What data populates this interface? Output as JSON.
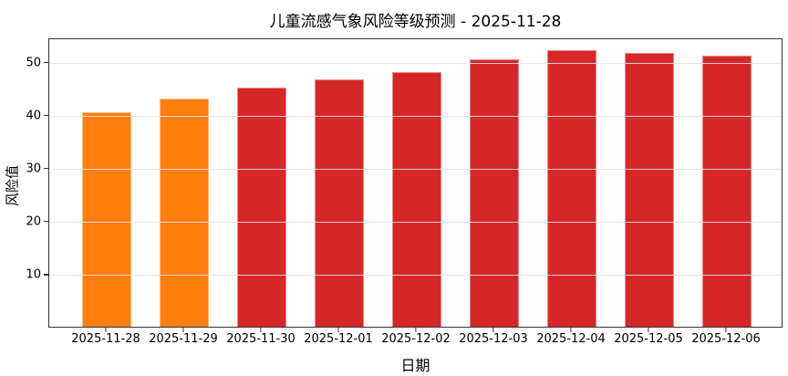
{
  "chart_data": {
    "type": "bar",
    "title": "儿童流感气象风险等级预测 - 2025-11-28",
    "xlabel": "日期",
    "ylabel": "风险值",
    "categories": [
      "2025-11-28",
      "2025-11-29",
      "2025-11-30",
      "2025-12-01",
      "2025-12-02",
      "2025-12-03",
      "2025-12-04",
      "2025-12-05",
      "2025-12-06"
    ],
    "values": [
      40.5,
      43.0,
      45.2,
      46.7,
      48.0,
      50.5,
      52.2,
      51.7,
      51.2
    ],
    "bar_colors": [
      "#ff7f0e",
      "#ff7f0e",
      "#d62728",
      "#d62728",
      "#d62728",
      "#d62728",
      "#d62728",
      "#d62728",
      "#d62728"
    ],
    "yticks": [
      10,
      20,
      30,
      40,
      50
    ],
    "ylim": [
      0,
      54.6
    ],
    "grid": "horizontal",
    "legend": "none",
    "colors": {
      "orange": "#ff7f0e",
      "red": "#d62728",
      "gridline": "#e4e4e4",
      "spine": "#333333",
      "text": "#000000",
      "background": "#ffffff"
    }
  }
}
